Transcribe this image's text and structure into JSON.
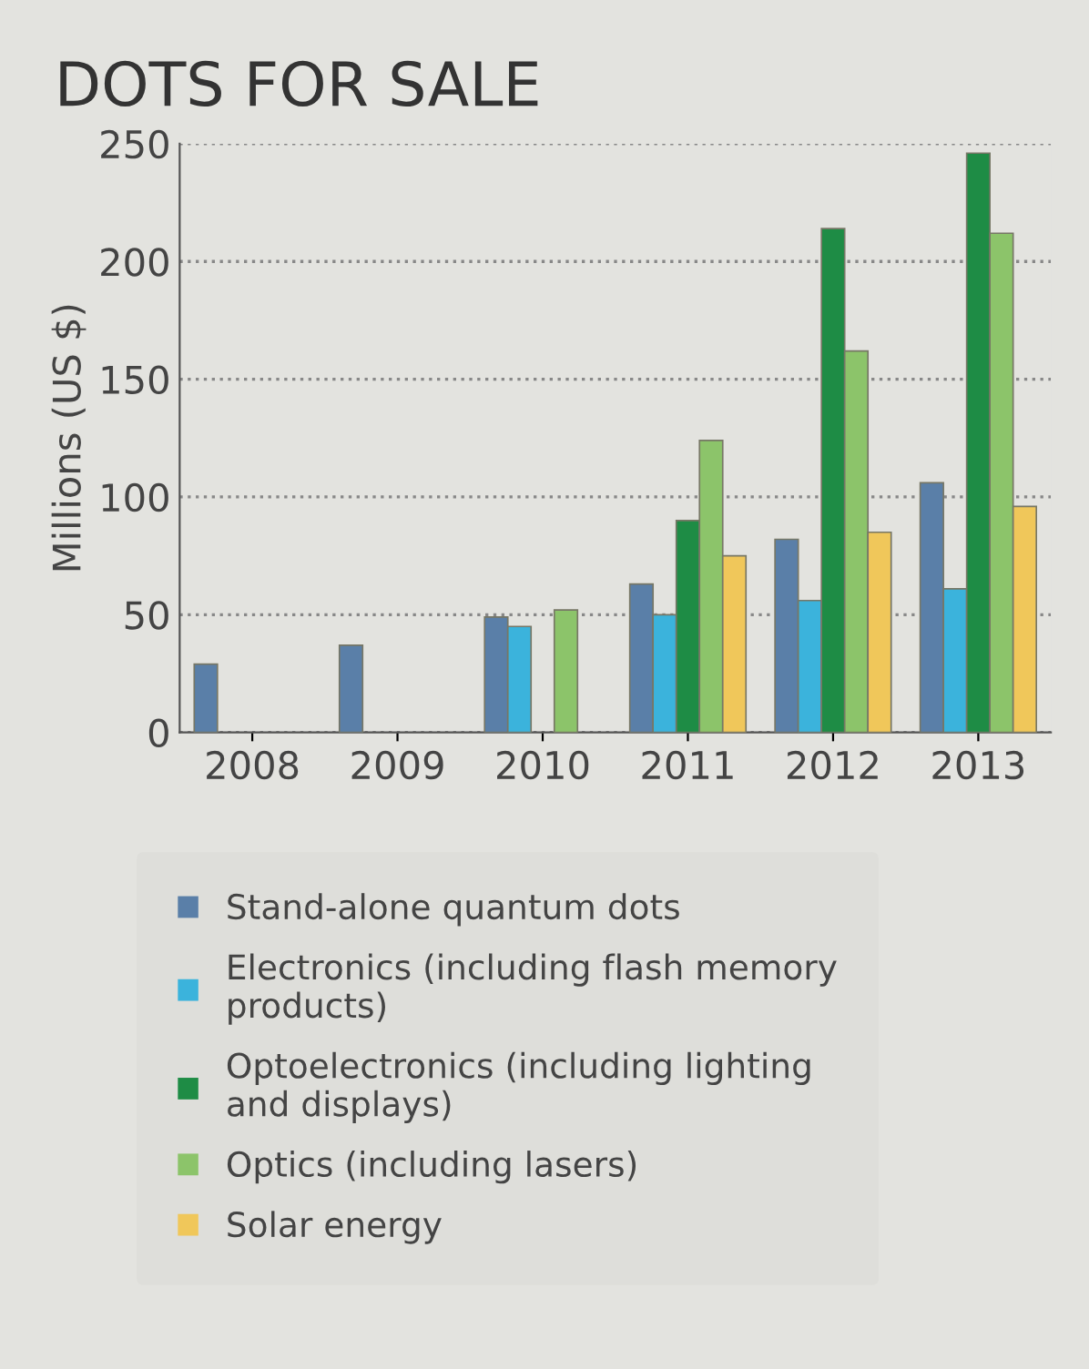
{
  "chart_data": {
    "type": "bar",
    "title": "DOTS FOR SALE",
    "ylabel": "Millions (US $)",
    "categories": [
      "2008",
      "2009",
      "2010",
      "2011",
      "2012",
      "2013"
    ],
    "series": [
      {
        "name": "Stand-alone quantum dots",
        "color": "#5a7fa8",
        "values": [
          29,
          37,
          49,
          63,
          82,
          106
        ]
      },
      {
        "name": "Electronics (including flash memory products)",
        "color": "#3bb3dc",
        "values": [
          null,
          null,
          45,
          50,
          56,
          61
        ]
      },
      {
        "name": "Optoelectronics (including lighting and displays)",
        "color": "#1e8c45",
        "values": [
          null,
          null,
          null,
          90,
          214,
          246
        ]
      },
      {
        "name": "Optics (including lasers)",
        "color": "#8cc46a",
        "values": [
          null,
          null,
          52,
          124,
          162,
          212
        ]
      },
      {
        "name": "Solar energy",
        "color": "#f0c75a",
        "values": [
          null,
          null,
          null,
          75,
          85,
          96
        ]
      }
    ],
    "ylim": [
      0,
      250
    ],
    "yticks": [
      0,
      50,
      100,
      150,
      200,
      250
    ],
    "grid": "y",
    "legend": "bottom"
  }
}
